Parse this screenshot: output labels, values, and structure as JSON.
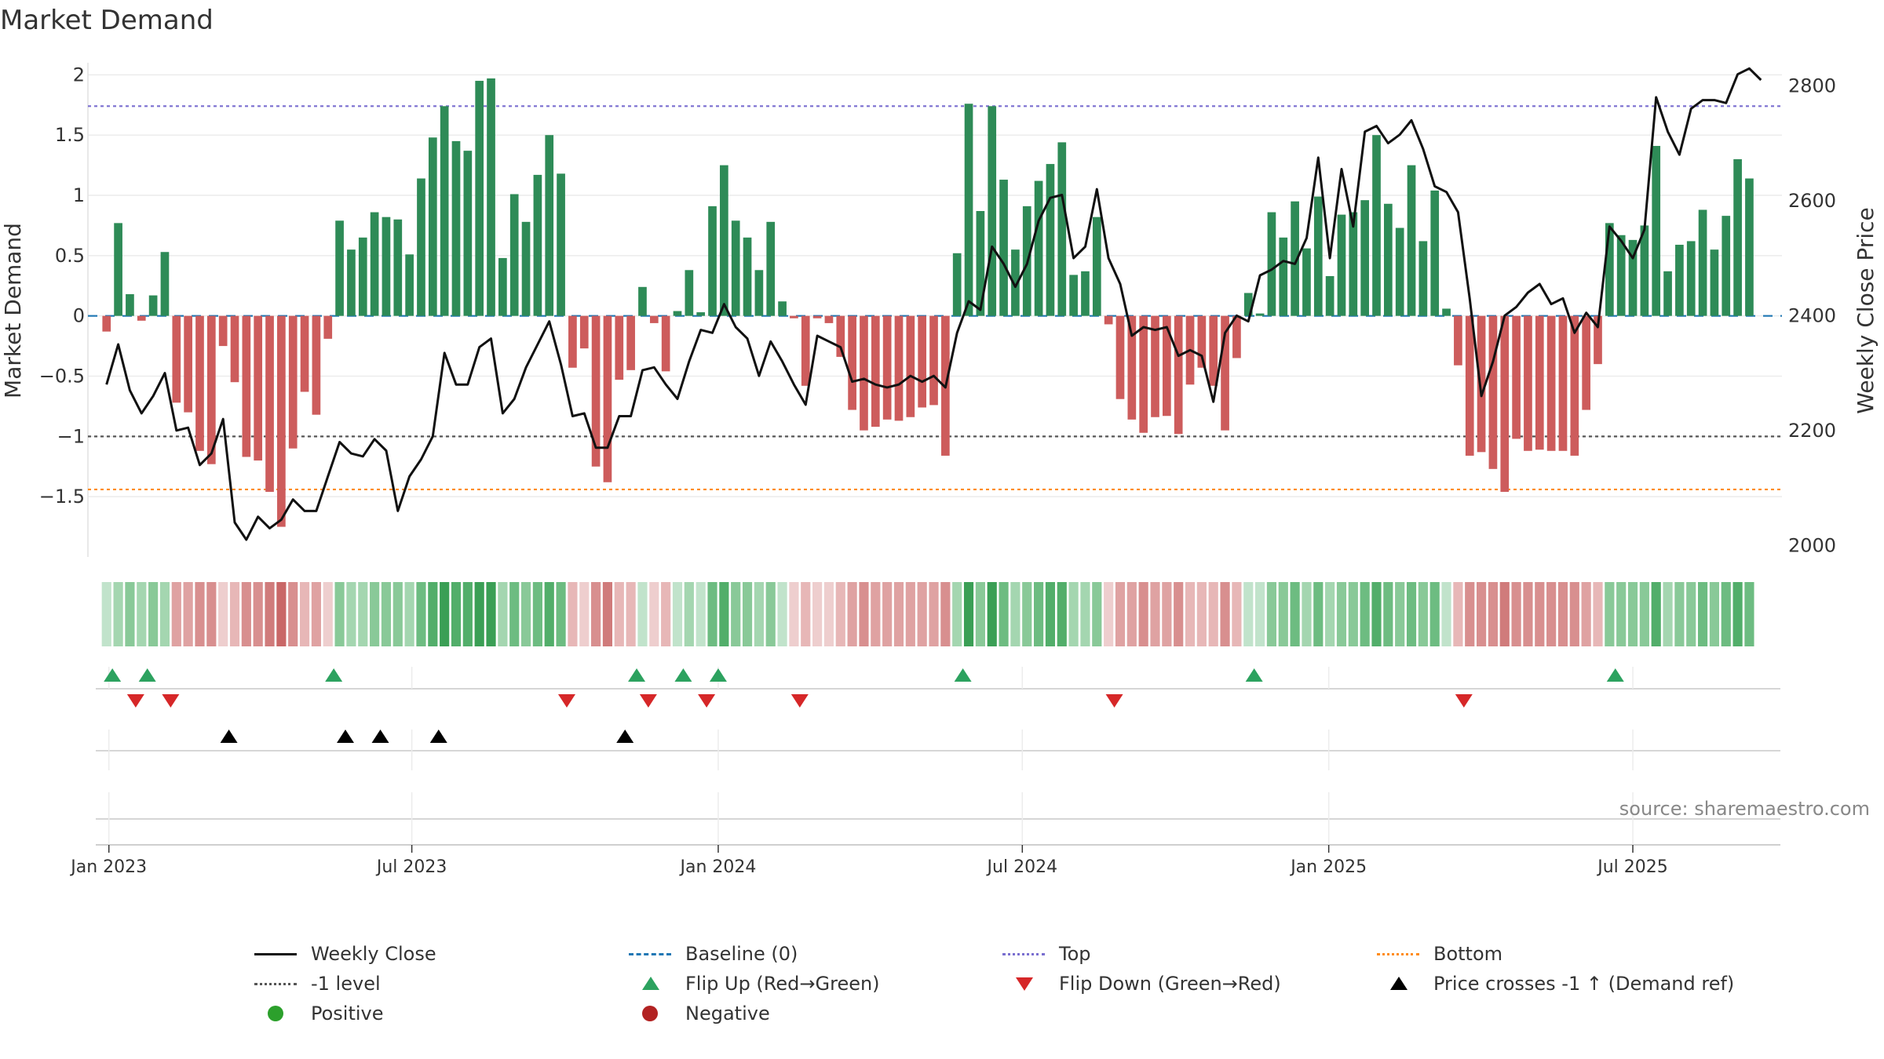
{
  "chart_data": {
    "type": "bar",
    "title": "Market Demand",
    "ylabel": "Market Demand",
    "y2label": "Weekly Close Price",
    "ylim": [
      -2.0,
      2.1
    ],
    "y2lim": [
      1980,
      2840
    ],
    "yticks": [
      2,
      1.5,
      1,
      0.5,
      0,
      -0.5,
      -1,
      -1.5
    ],
    "ytick_labels": [
      "2",
      "1.5",
      "1",
      "0.5",
      "0",
      "−0.5",
      "−1",
      "−1.5"
    ],
    "y2ticks": [
      2000,
      2200,
      2400,
      2600,
      2800
    ],
    "y2tick_labels": [
      "2000",
      "2200",
      "2400",
      "2600",
      "2800"
    ],
    "x_index_range": [
      -1.6,
      143.8
    ],
    "xticks": [
      {
        "label": "Jan 2023",
        "index": 0.2
      },
      {
        "label": "Jul 2023",
        "index": 26.2
      },
      {
        "label": "Jan 2024",
        "index": 52.5
      },
      {
        "label": "Jul 2024",
        "index": 78.6
      },
      {
        "label": "Jan 2025",
        "index": 104.9
      },
      {
        "label": "Jul 2025",
        "index": 131.0
      }
    ],
    "reference_lines": [
      {
        "name": "Top",
        "value": 1.74,
        "color": "#7a6fd0",
        "style": "dotted"
      },
      {
        "name": "-1 level",
        "value": -1.0,
        "color": "#555555",
        "style": "dotted"
      },
      {
        "name": "Bottom",
        "value": -1.44,
        "color": "#ff8c1a",
        "style": "dotted"
      },
      {
        "name": "Baseline (0)",
        "value": 0,
        "color": "#1f77b4",
        "style": "dashed"
      }
    ],
    "demand_values": [
      -0.13,
      0.77,
      0.18,
      -0.04,
      0.17,
      0.53,
      -0.72,
      -0.8,
      -1.12,
      -1.23,
      -0.25,
      -0.55,
      -1.17,
      -1.2,
      -1.46,
      -1.75,
      -1.1,
      -0.63,
      -0.82,
      -0.19,
      0.79,
      0.55,
      0.65,
      0.86,
      0.82,
      0.8,
      0.51,
      1.14,
      1.48,
      1.74,
      1.45,
      1.37,
      1.95,
      1.97,
      0.48,
      1.01,
      0.78,
      1.17,
      1.5,
      1.18,
      -0.43,
      -0.27,
      -1.25,
      -1.38,
      -0.53,
      -0.45,
      0.24,
      -0.06,
      -0.46,
      0.04,
      0.38,
      0.03,
      0.91,
      1.25,
      0.79,
      0.65,
      0.38,
      0.78,
      0.12,
      -0.02,
      -0.58,
      -0.02,
      -0.06,
      -0.34,
      -0.78,
      -0.95,
      -0.92,
      -0.86,
      -0.87,
      -0.84,
      -0.76,
      -0.74,
      -1.16,
      0.52,
      1.76,
      0.87,
      1.74,
      1.13,
      0.55,
      0.91,
      1.12,
      1.26,
      1.44,
      0.34,
      0.37,
      0.82,
      -0.07,
      -0.69,
      -0.86,
      -0.97,
      -0.84,
      -0.83,
      -0.98,
      -0.57,
      -0.43,
      -0.58,
      -0.95,
      -0.35,
      0.19,
      0.02,
      0.86,
      0.65,
      0.95,
      0.56,
      0.99,
      0.33,
      0.84,
      0.86,
      0.96,
      1.5,
      0.93,
      0.73,
      1.25,
      0.62,
      1.04,
      0.06,
      -0.41,
      -1.16,
      -1.13,
      -1.27,
      -1.46,
      -1.02,
      -1.12,
      -1.11,
      -1.12,
      -1.12,
      -1.16,
      -0.78,
      -0.4,
      0.77,
      0.67,
      0.63,
      0.75,
      1.41,
      0.37,
      0.59,
      0.62,
      0.88,
      0.55,
      0.83,
      1.3,
      1.14
    ],
    "close_values": [
      2280,
      2350,
      2270,
      2230,
      2260,
      2300,
      2200,
      2205,
      2140,
      2160,
      2220,
      2040,
      2010,
      2050,
      2030,
      2045,
      2080,
      2060,
      2060,
      2120,
      2180,
      2160,
      2155,
      2185,
      2165,
      2060,
      2120,
      2150,
      2190,
      2335,
      2280,
      2280,
      2345,
      2360,
      2230,
      2255,
      2310,
      2350,
      2390,
      2315,
      2225,
      2230,
      2170,
      2170,
      2225,
      2225,
      2305,
      2310,
      2280,
      2255,
      2320,
      2375,
      2370,
      2420,
      2380,
      2360,
      2295,
      2355,
      2320,
      2280,
      2245,
      2365,
      2355,
      2345,
      2285,
      2290,
      2280,
      2275,
      2280,
      2295,
      2285,
      2295,
      2275,
      2370,
      2425,
      2410,
      2520,
      2490,
      2450,
      2490,
      2565,
      2605,
      2610,
      2500,
      2520,
      2620,
      2500,
      2455,
      2365,
      2380,
      2375,
      2380,
      2330,
      2340,
      2330,
      2250,
      2370,
      2400,
      2390,
      2470,
      2480,
      2495,
      2490,
      2535,
      2675,
      2500,
      2655,
      2555,
      2720,
      2730,
      2700,
      2715,
      2740,
      2690,
      2625,
      2615,
      2580,
      2430,
      2260,
      2320,
      2400,
      2415,
      2440,
      2455,
      2420,
      2430,
      2370,
      2405,
      2380,
      2555,
      2530,
      2500,
      2550,
      2780,
      2720,
      2680,
      2760,
      2775,
      2775,
      2770,
      2820,
      2830,
      2810
    ],
    "strip_levels": [
      1,
      2,
      3,
      2,
      3,
      2,
      -3,
      -3,
      -4,
      -4,
      -1,
      -2,
      -4,
      -4,
      -5,
      -6,
      -4,
      -2,
      -3,
      -1,
      3,
      2,
      2,
      3,
      3,
      3,
      2,
      4,
      5,
      6,
      5,
      5,
      6,
      6,
      2,
      4,
      3,
      4,
      5,
      4,
      -2,
      -1,
      -4,
      -5,
      -2,
      -2,
      1,
      -1,
      -2,
      1,
      2,
      1,
      4,
      5,
      3,
      3,
      2,
      3,
      1,
      -1,
      -2,
      -1,
      -1,
      -2,
      -3,
      -4,
      -3,
      -3,
      -3,
      -3,
      -3,
      -3,
      -4,
      2,
      6,
      3,
      6,
      4,
      2,
      3,
      4,
      5,
      5,
      2,
      2,
      3,
      -1,
      -3,
      -3,
      -4,
      -3,
      -3,
      -4,
      -2,
      -2,
      -2,
      -4,
      -2,
      1,
      1,
      3,
      3,
      4,
      2,
      4,
      2,
      3,
      3,
      4,
      5,
      4,
      3,
      4,
      3,
      4,
      1,
      -2,
      -4,
      -4,
      -4,
      -5,
      -4,
      -4,
      -4,
      -4,
      -4,
      -4,
      -3,
      -2,
      3,
      3,
      3,
      3,
      5,
      2,
      3,
      3,
      4,
      3,
      4,
      5,
      4
    ],
    "flip_up_index": [
      0.5,
      3.5,
      19.5,
      45.5,
      49.5,
      52.5,
      73.5,
      98.5,
      129.5
    ],
    "flip_down_index": [
      2.5,
      5.5,
      39.5,
      46.5,
      51.5,
      59.5,
      86.5,
      116.5
    ],
    "price_cross_index": [
      10.5,
      20.5,
      23.5,
      28.5,
      44.5
    ],
    "annotation": "source: sharemaestro.com",
    "legend": [
      {
        "key": "close",
        "label": "Weekly Close"
      },
      {
        "key": "baseline",
        "label": "Baseline (0)"
      },
      {
        "key": "top",
        "label": "Top"
      },
      {
        "key": "bottom",
        "label": "Bottom"
      },
      {
        "key": "minus1",
        "label": "-1 level"
      },
      {
        "key": "flipup",
        "label": "Flip Up (Red→Green)"
      },
      {
        "key": "flipdown",
        "label": "Flip Down (Green→Red)"
      },
      {
        "key": "cross",
        "label": "Price crosses -1 ↑ (Demand ref)"
      },
      {
        "key": "positive",
        "label": "Positive"
      },
      {
        "key": "negative",
        "label": "Negative"
      }
    ],
    "colors": {
      "positive": "#2e8b57",
      "negative": "#cd5c5c",
      "close": "#111111",
      "flip_up": "#2ca25f",
      "flip_down": "#d62728",
      "cross": "#000000",
      "legend_positive": "#2ca02c",
      "legend_negative": "#b22222"
    }
  }
}
